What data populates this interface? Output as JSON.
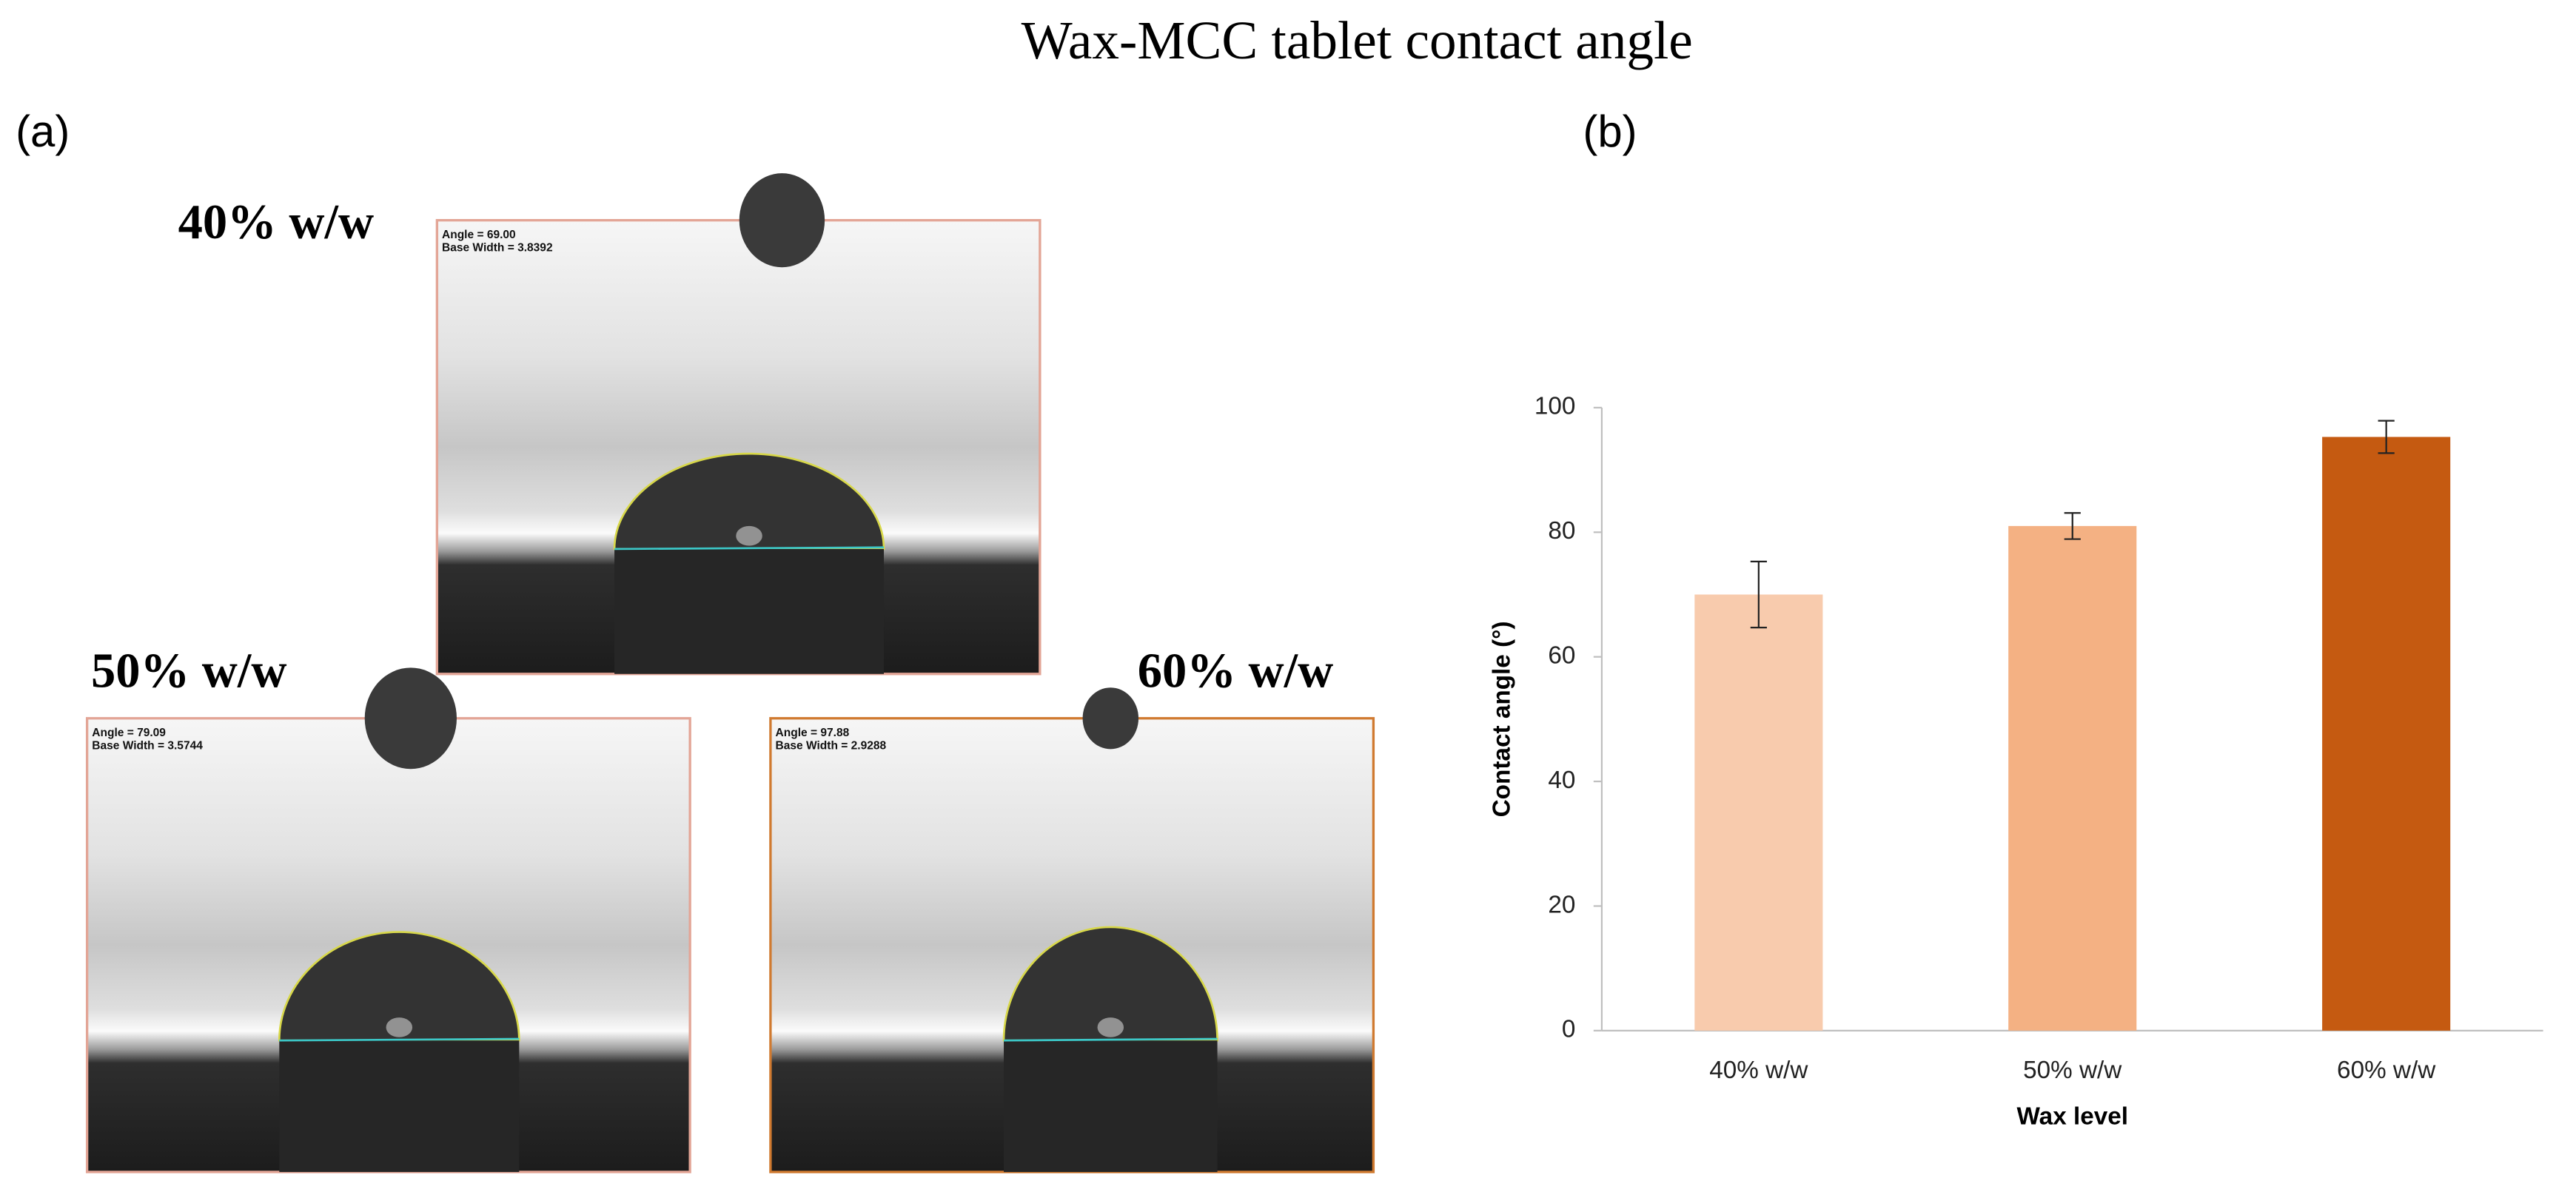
{
  "title": "Wax-MCC tablet contact angle",
  "panel_a": {
    "label": "(a)",
    "images": [
      {
        "label": "40% w/w",
        "angle": "Angle =  69.00",
        "width": "Base Width =  3.8392"
      },
      {
        "label": "50% w/w",
        "angle": "Angle =  79.09",
        "width": "Base Width =  3.5744"
      },
      {
        "label": "60% w/w",
        "angle": "Angle =  97.88",
        "width": "Base Width =  2.9288"
      }
    ]
  },
  "panel_b_label": "(b)",
  "chart_data": {
    "type": "bar",
    "categories": [
      "40% w/w",
      "50% w/w",
      "60% w/w"
    ],
    "values": [
      70,
      81,
      95.3
    ],
    "errors": [
      5.3,
      2.1,
      2.6
    ],
    "colors": [
      "#f8cbad",
      "#f4b183",
      "#c55a11"
    ],
    "xlabel": "Wax  level",
    "ylabel": "Contact angle (°)",
    "ylim": [
      0,
      100
    ],
    "yticks": [
      0,
      20,
      40,
      60,
      80,
      100
    ]
  }
}
